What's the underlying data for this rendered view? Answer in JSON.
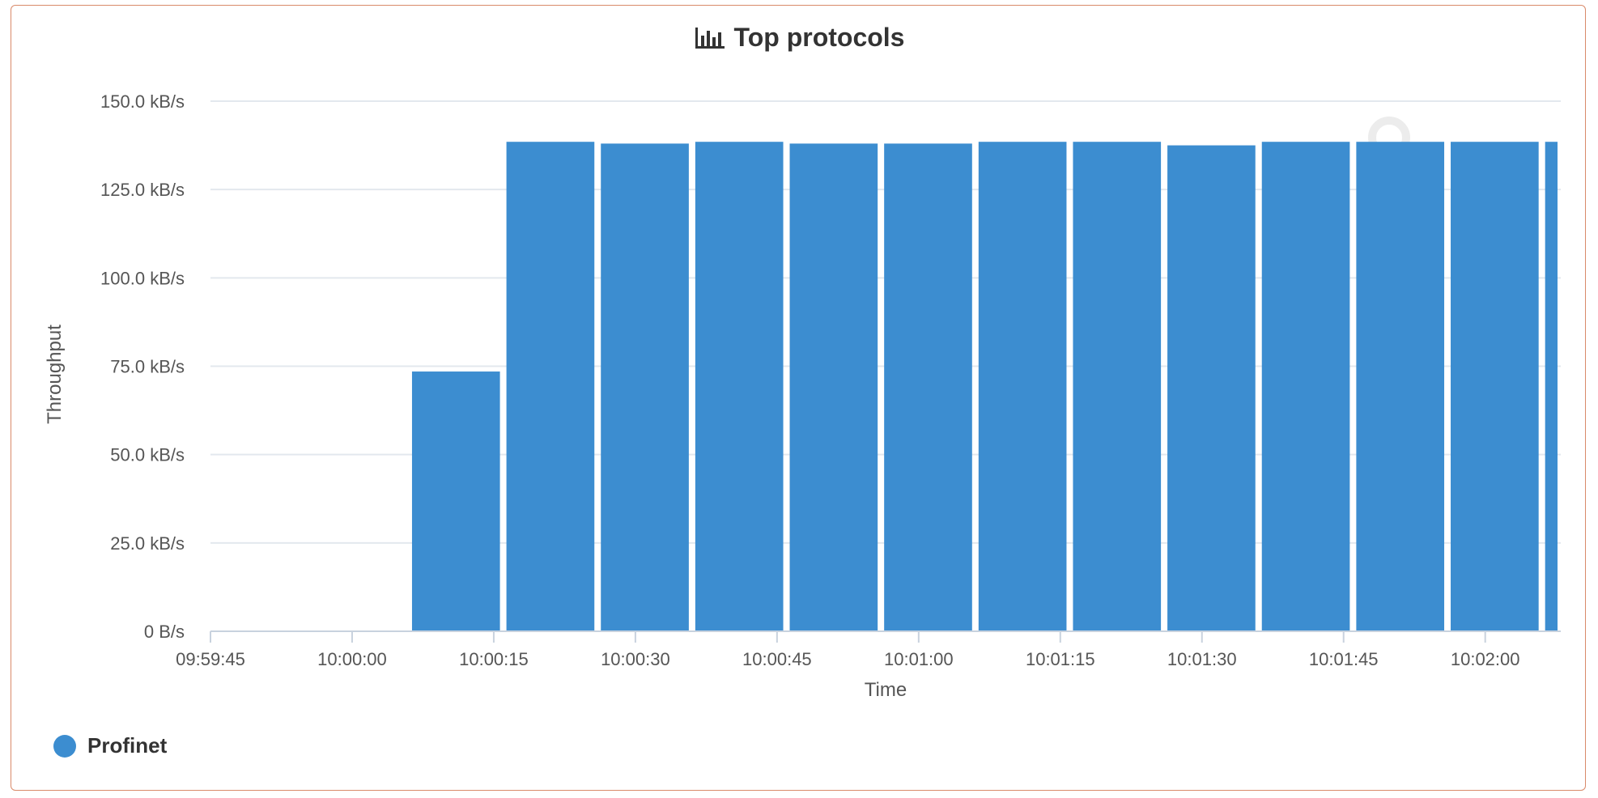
{
  "panel": {
    "title": "Top protocols",
    "title_icon": "bar-chart-icon"
  },
  "colors": {
    "bar": "#3c8dd0",
    "grid": "#e3e8ee",
    "axis": "#c8d2de",
    "border": "#d98a6a"
  },
  "chart_data": {
    "type": "bar",
    "title": "Top protocols",
    "xlabel": "Time",
    "ylabel": "Throughput",
    "ylim": [
      0,
      150
    ],
    "y_unit": "kB/s",
    "y_ticks": [
      {
        "value": 0,
        "label": "0 B/s"
      },
      {
        "value": 25,
        "label": "25.0 kB/s"
      },
      {
        "value": 50,
        "label": "50.0 kB/s"
      },
      {
        "value": 75,
        "label": "75.0 kB/s"
      },
      {
        "value": 100,
        "label": "100.0 kB/s"
      },
      {
        "value": 125,
        "label": "125.0 kB/s"
      },
      {
        "value": 150,
        "label": "150.0 kB/s"
      }
    ],
    "xlim": [
      "09:59:45",
      "10:02:08"
    ],
    "x_ticks": [
      "09:59:45",
      "10:00:00",
      "10:00:15",
      "10:00:30",
      "10:00:45",
      "10:01:00",
      "10:01:15",
      "10:01:30",
      "10:01:45",
      "10:02:00"
    ],
    "bar_width_seconds": 10,
    "grid": true,
    "legend_position": "bottom-left",
    "series": [
      {
        "name": "Profinet",
        "points": [
          {
            "x": "10:00:06",
            "value": 73.5
          },
          {
            "x": "10:00:16",
            "value": 138.5
          },
          {
            "x": "10:00:26",
            "value": 138.0
          },
          {
            "x": "10:00:36",
            "value": 138.5
          },
          {
            "x": "10:00:46",
            "value": 138.0
          },
          {
            "x": "10:00:56",
            "value": 138.0
          },
          {
            "x": "10:01:06",
            "value": 138.5
          },
          {
            "x": "10:01:16",
            "value": 138.5
          },
          {
            "x": "10:01:26",
            "value": 137.5
          },
          {
            "x": "10:01:36",
            "value": 138.5
          },
          {
            "x": "10:01:46",
            "value": 138.5
          },
          {
            "x": "10:01:56",
            "value": 138.5
          },
          {
            "x": "10:02:06",
            "value": 138.5
          }
        ]
      }
    ]
  }
}
